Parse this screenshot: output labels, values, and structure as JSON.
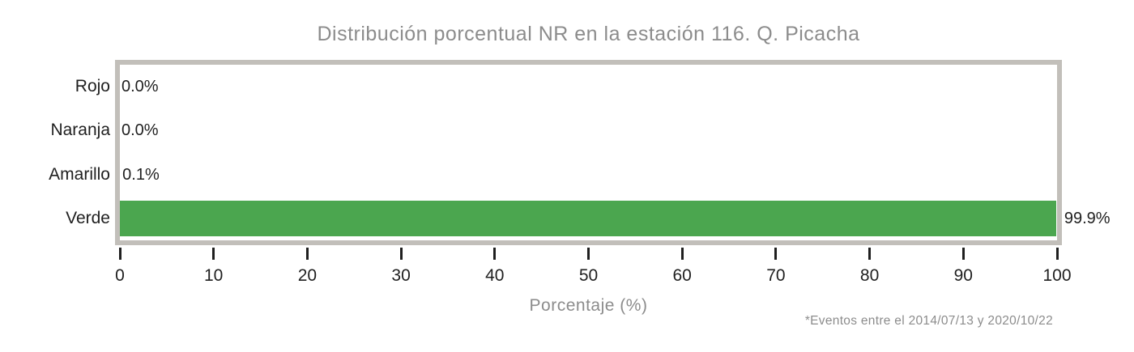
{
  "chart_data": {
    "type": "bar",
    "orientation": "horizontal",
    "title": "Distribución porcentual NR en la estación 116. Q. Picacha",
    "categories": [
      "Rojo",
      "Naranja",
      "Amarillo",
      "Verde"
    ],
    "values": [
      0.0,
      0.0,
      0.1,
      99.9
    ],
    "value_labels": [
      "0.0%",
      "0.0%",
      "0.1%",
      "99.9%"
    ],
    "bar_colors": [
      null,
      null,
      null,
      "#4ba64f"
    ],
    "xlabel": "Porcentaje (%)",
    "xlim": [
      0,
      100
    ],
    "xticks": [
      0,
      10,
      20,
      30,
      40,
      50,
      60,
      70,
      80,
      90,
      100
    ],
    "footnote": "*Eventos entre el 2014/07/13 y 2020/10/22",
    "grid": false,
    "legend": null,
    "colors": {
      "bar_green": "#4ba64f",
      "frame_gray": "#c2bfba",
      "muted_text_gray": "#8c8c8c",
      "axis_text_black": "#1f1f1f"
    }
  }
}
